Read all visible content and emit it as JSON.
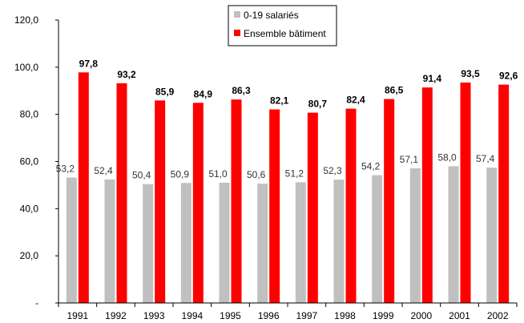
{
  "chart_data": {
    "type": "bar",
    "title": "",
    "xlabel": "",
    "ylabel": "",
    "categories": [
      "1991",
      "1992",
      "1993",
      "1994",
      "1995",
      "1996",
      "1997",
      "1998",
      "1999",
      "2000",
      "2001",
      "2002"
    ],
    "series": [
      {
        "name": "0-19 salariés",
        "values": [
          53.2,
          52.4,
          50.4,
          50.9,
          51.0,
          50.6,
          51.2,
          52.3,
          54.2,
          57.1,
          58.0,
          57.4
        ],
        "labels": [
          "53,2",
          "52,4",
          "50,4",
          "50,9",
          "51,0",
          "50,6",
          "51,2",
          "52,3",
          "54,2",
          "57,1",
          "58,0",
          "57,4"
        ],
        "color": "#c0c0c0"
      },
      {
        "name": "Ensemble bâtiment",
        "values": [
          97.8,
          93.2,
          85.9,
          84.9,
          86.3,
          82.1,
          80.7,
          82.4,
          86.5,
          91.4,
          93.5,
          92.6
        ],
        "labels": [
          "97,8",
          "93,2",
          "85,9",
          "84,9",
          "86,3",
          "82,1",
          "80,7",
          "82,4",
          "86,5",
          "91,4",
          "93,5",
          "92,6"
        ],
        "color": "#ff0000"
      }
    ],
    "yticks": [
      0,
      20,
      40,
      60,
      80,
      100,
      120
    ],
    "ytick_labels": [
      "-",
      "20,0",
      "40,0",
      "60,0",
      "80,0",
      "100,0",
      "120,0"
    ],
    "ylim": [
      0,
      120
    ],
    "grid": false,
    "legend": "top-center"
  }
}
